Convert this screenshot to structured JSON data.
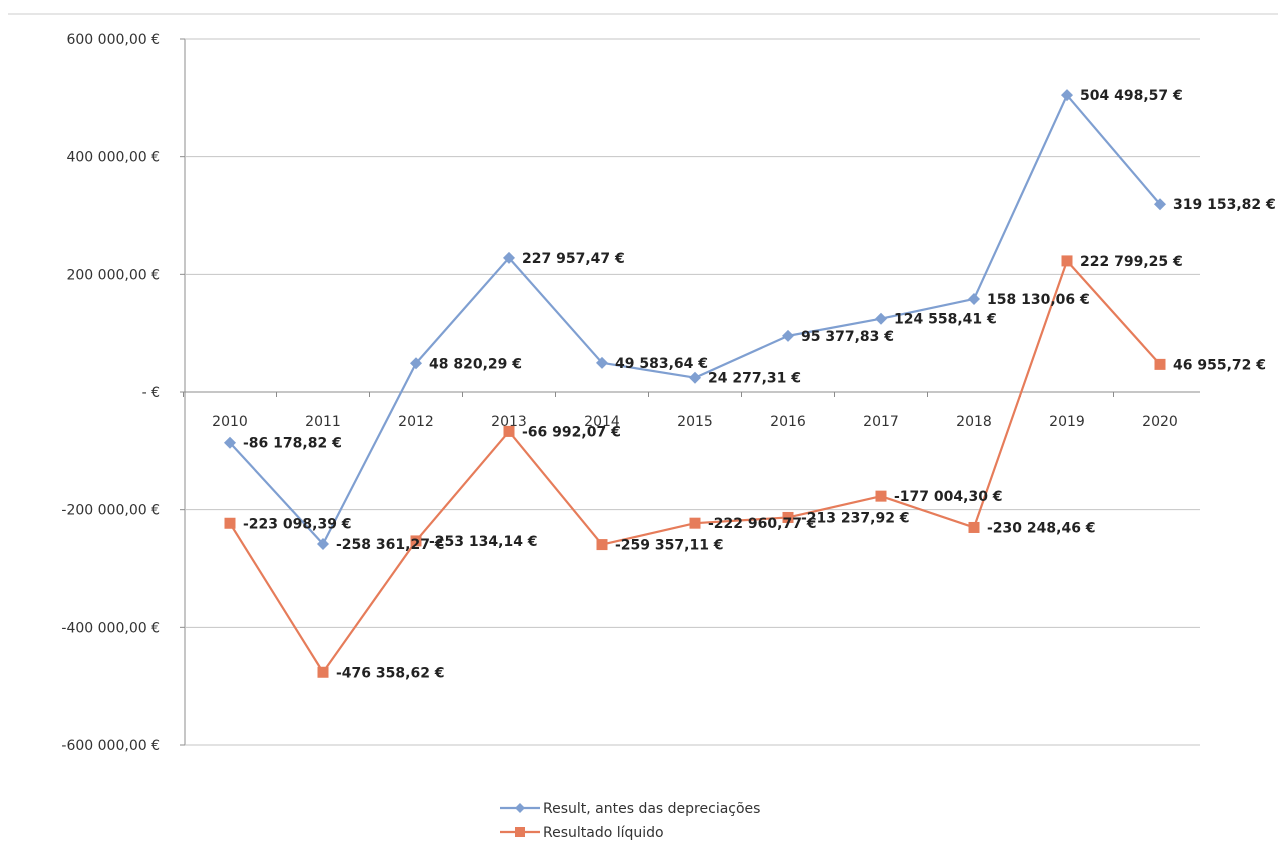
{
  "chart_data": {
    "type": "line",
    "categories": [
      "2010",
      "2011",
      "2012",
      "2013",
      "2014",
      "2015",
      "2016",
      "2017",
      "2018",
      "2019",
      "2020"
    ],
    "ylim": [
      -600000,
      600000
    ],
    "y_ticks": [
      600000,
      400000,
      200000,
      0,
      -200000,
      -400000,
      -600000
    ],
    "y_tick_labels": [
      "600 000,00 €",
      "400 000,00 €",
      "200 000,00 €",
      "-   €",
      "-200 000,00 €",
      "-400 000,00 €",
      "-600 000,00 €"
    ],
    "grid": true,
    "legend_position": "bottom",
    "series": [
      {
        "name": "Result, antes das depreciações",
        "color": "#7f9fd1",
        "marker": "diamond",
        "values": [
          -86178.82,
          -258361.27,
          48820.29,
          227957.47,
          49583.64,
          24277.31,
          95377.83,
          124558.41,
          158130.06,
          504498.57,
          319153.82
        ],
        "labels": [
          "-86 178,82 €",
          "-258 361,27 €",
          "48 820,29 €",
          "227 957,47 €",
          "49 583,64 €",
          "24 277,31 €",
          "95 377,83 €",
          "124 558,41 €",
          "158 130,06 €",
          "504 498,57 €",
          "319 153,82 €"
        ]
      },
      {
        "name": "Resultado líquido",
        "color": "#e67c5a",
        "marker": "square",
        "values": [
          -223098.39,
          -476358.62,
          -253134.14,
          -66992.07,
          -259357.11,
          -222960.77,
          -213237.92,
          -177004.3,
          -230248.46,
          222799.25,
          46955.72
        ],
        "labels": [
          "-223 098,39 €",
          "-476 358,62 €",
          "-253 134,14 €",
          "-66 992,07 €",
          "-259 357,11 €",
          "-222 960,77 €",
          "-213 237,92 €",
          "-177 004,30 €",
          "-230 248,46 €",
          "222 799,25 €",
          "46 955,72 €"
        ]
      }
    ]
  }
}
